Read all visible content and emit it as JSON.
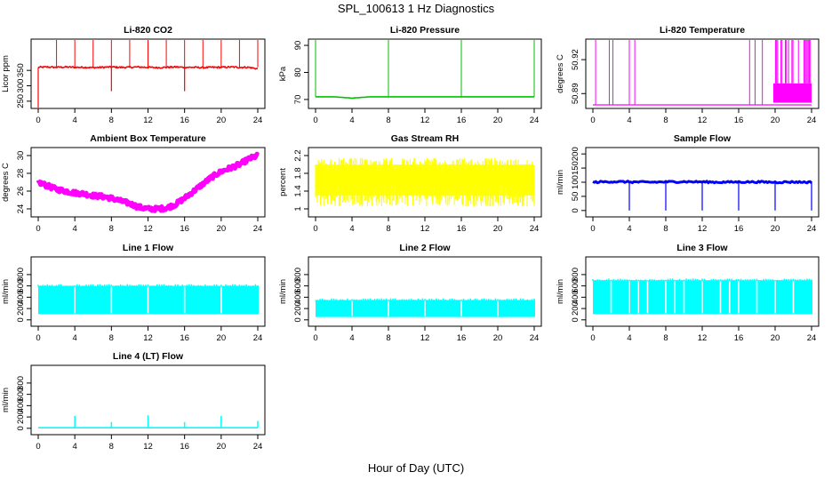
{
  "figure": {
    "title": "SPL_100613  1 Hz Diagnostics",
    "xlabel": "Hour of Day (UTC)"
  },
  "chart_data": [
    {
      "type": "line",
      "title": "Li-820 CO2",
      "ylabel": "Licor ppm",
      "xlim": [
        0,
        24
      ],
      "xticks": [
        0,
        4,
        8,
        12,
        16,
        20,
        24
      ],
      "ylim": [
        238,
        440
      ],
      "yticks": [
        250,
        300,
        350
      ],
      "color": "#ff0000",
      "series": [
        {
          "x": [
            0,
            1,
            2,
            3,
            4,
            5,
            6,
            7,
            8,
            9,
            10,
            11,
            12,
            13,
            14,
            15,
            16,
            17,
            18,
            19,
            20,
            21,
            22,
            23,
            24
          ],
          "y": [
            360,
            361,
            360,
            361,
            360,
            360,
            359,
            360,
            361,
            360,
            360,
            361,
            360,
            359,
            360,
            361,
            360,
            360,
            359,
            360,
            360,
            361,
            360,
            360,
            355
          ]
        }
      ],
      "spikes_up": [
        2,
        4,
        6,
        8,
        10,
        12,
        14,
        16,
        18,
        20,
        22,
        24
      ],
      "spikes_down": [
        0,
        8,
        16
      ]
    },
    {
      "type": "line",
      "title": "Li-820 Pressure",
      "ylabel": "kPa",
      "xlim": [
        0,
        24
      ],
      "xticks": [
        0,
        4,
        8,
        12,
        16,
        20,
        24
      ],
      "ylim": [
        68,
        91
      ],
      "yticks": [
        70,
        80,
        90
      ],
      "color": "#00c000",
      "series": [
        {
          "x": [
            0,
            2,
            4,
            6,
            8,
            10,
            12,
            14,
            16,
            18,
            20,
            22,
            24
          ],
          "y": [
            71,
            71,
            70.5,
            71,
            71,
            71,
            71,
            71,
            71,
            71,
            71,
            71,
            71
          ]
        }
      ],
      "spikes_up": [
        0,
        8,
        16,
        24
      ]
    },
    {
      "type": "line",
      "title": "Li-820 Temperature",
      "ylabel": "degrees C",
      "xlim": [
        0,
        24
      ],
      "xticks": [
        0,
        4,
        8,
        12,
        16,
        20,
        24
      ],
      "ylim": [
        50.88,
        50.935
      ],
      "yticks": [
        50.89,
        50.92
      ],
      "color": "#ff00ff",
      "baseline": 50.88,
      "spikes_up": [
        0.3,
        1.8,
        2.2,
        4.0,
        4.6,
        17.2,
        17.8,
        18.6
      ]
    },
    {
      "type": "line",
      "title": "Ambient Box Temperature",
      "ylabel": "degrees C",
      "xlim": [
        0,
        24
      ],
      "xticks": [
        0,
        4,
        8,
        12,
        16,
        20,
        24
      ],
      "ylim": [
        23.5,
        30.5
      ],
      "yticks": [
        24,
        26,
        28,
        30
      ],
      "color": "#ff00ff",
      "series": [
        {
          "x": [
            0,
            1,
            2,
            3,
            4,
            5,
            6,
            7,
            8,
            9,
            10,
            11,
            12,
            13,
            14,
            15,
            16,
            17,
            18,
            19,
            20,
            21,
            22,
            23,
            24
          ],
          "y": [
            27.0,
            26.6,
            26.2,
            26.0,
            25.8,
            25.7,
            25.5,
            25.4,
            25.2,
            24.9,
            24.6,
            24.2,
            24.0,
            24.0,
            24.1,
            24.5,
            25.2,
            26.0,
            26.8,
            27.6,
            28.2,
            28.6,
            29.0,
            29.6,
            30.0
          ]
        }
      ]
    },
    {
      "type": "line",
      "title": "Gas Stream RH",
      "ylabel": "percent",
      "xlim": [
        0,
        24
      ],
      "xticks": [
        0,
        4,
        8,
        12,
        16,
        20,
        24
      ],
      "ylim": [
        0.9,
        2.3
      ],
      "yticks": [
        1.0,
        1.4,
        1.8,
        2.2
      ],
      "color": "#ffff00",
      "band": [
        1.05,
        2.15
      ]
    },
    {
      "type": "line",
      "title": "Sample Flow",
      "ylabel": "ml/min",
      "xlim": [
        0,
        24
      ],
      "xticks": [
        0,
        4,
        8,
        12,
        16,
        20,
        24
      ],
      "ylim": [
        -10,
        210
      ],
      "yticks": [
        0,
        50,
        100,
        150,
        200
      ],
      "color": "#0000ff",
      "series": [
        {
          "x": [
            0,
            2,
            4,
            6,
            8,
            10,
            12,
            14,
            16,
            18,
            20,
            22,
            24
          ],
          "y": [
            100,
            102,
            101,
            100,
            101,
            102,
            101,
            100,
            101,
            101,
            100,
            101,
            100
          ]
        }
      ],
      "spikes_down": [
        4,
        8,
        12,
        16,
        20,
        24
      ]
    },
    {
      "type": "area",
      "title": "Line 1 Flow",
      "ylabel": "ml/min",
      "xlim": [
        0,
        24
      ],
      "xticks": [
        0,
        4,
        8,
        12,
        16,
        20,
        24
      ],
      "ylim": [
        -50,
        1050
      ],
      "yticks": [
        0,
        200,
        400,
        600,
        800
      ],
      "color": "#00ffff",
      "band": [
        100,
        600
      ],
      "gaps": [
        4,
        8,
        12,
        16,
        20
      ]
    },
    {
      "type": "area",
      "title": "Line 2 Flow",
      "ylabel": "ml/min",
      "xlim": [
        0,
        24
      ],
      "xticks": [
        0,
        4,
        8,
        12,
        16,
        20,
        24
      ],
      "ylim": [
        -50,
        1050
      ],
      "yticks": [
        0,
        200,
        400,
        600,
        800
      ],
      "color": "#00ffff",
      "band": [
        50,
        350
      ],
      "gaps": [
        4,
        8,
        12,
        16,
        20
      ]
    },
    {
      "type": "area",
      "title": "Line 3 Flow",
      "ylabel": "ml/min",
      "xlim": [
        0,
        24
      ],
      "xticks": [
        0,
        4,
        8,
        12,
        16,
        20,
        24
      ],
      "ylim": [
        -50,
        1050
      ],
      "yticks": [
        0,
        200,
        400,
        600,
        800
      ],
      "color": "#00ffff",
      "band": [
        100,
        700
      ],
      "gaps": [
        2,
        4,
        5,
        6,
        8,
        9,
        10,
        12,
        14,
        15,
        16,
        18,
        20,
        22
      ]
    },
    {
      "type": "line",
      "title": "Line 4 (LT) Flow",
      "ylabel": "ml/min",
      "xlim": [
        0,
        24
      ],
      "xticks": [
        0,
        4,
        8,
        12,
        16,
        20,
        24
      ],
      "ylim": [
        -50,
        1050
      ],
      "yticks": [
        0,
        200,
        400,
        600,
        800
      ],
      "color": "#00ffff",
      "series": [
        {
          "x": [
            0,
            24
          ],
          "y": [
            10,
            10
          ]
        }
      ],
      "spike_points": [
        {
          "x": 4,
          "y": 220
        },
        {
          "x": 8,
          "y": 110
        },
        {
          "x": 12,
          "y": 230
        },
        {
          "x": 16,
          "y": 110
        },
        {
          "x": 20,
          "y": 220
        },
        {
          "x": 24,
          "y": 130
        }
      ]
    }
  ]
}
